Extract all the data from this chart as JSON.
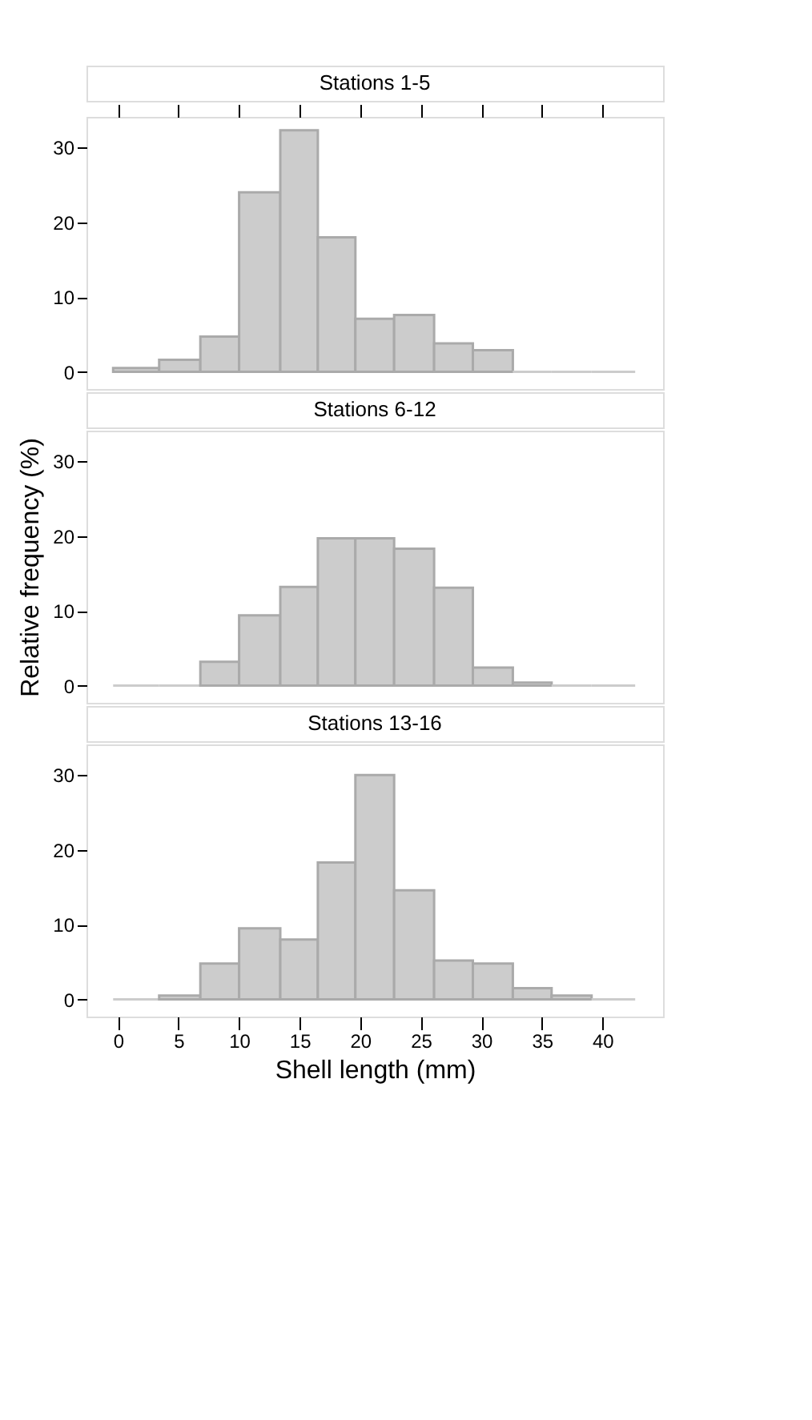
{
  "chart_data": [
    {
      "type": "histogram",
      "title": "Stations 1-5",
      "bins": [
        -0.4,
        3.4,
        6.8,
        10,
        13.4,
        16.5,
        19.6,
        22.8,
        26.1,
        29.3,
        32.6,
        35.8,
        39.1,
        42.7
      ],
      "values": [
        0.5,
        1.6,
        4.7,
        24.0,
        32.3,
        18.0,
        7.1,
        7.6,
        3.8,
        2.9,
        0,
        0,
        0
      ],
      "color": "#cccccc",
      "xlim": [
        -2.6,
        45.0
      ],
      "xticks": [
        {
          "value": 0,
          "label": null
        },
        {
          "value": 5,
          "label": null
        },
        {
          "value": 10,
          "label": null
        },
        {
          "value": 15,
          "label": null
        },
        {
          "value": 20,
          "label": null
        },
        {
          "value": 25,
          "label": null
        },
        {
          "value": 30,
          "label": null
        },
        {
          "value": 35,
          "label": null
        },
        {
          "value": 40,
          "label": null
        }
      ],
      "ylim": [
        -2.3,
        34.1
      ],
      "yticks": [
        0,
        10,
        20,
        30
      ],
      "tick_labels": "y",
      "grid": false
    },
    {
      "type": "histogram",
      "title": "Stations 6-12",
      "ylabel": "Relative frequency (%)",
      "bins": [
        -0.4,
        3.4,
        6.8,
        10,
        13.4,
        16.5,
        19.6,
        22.8,
        26.1,
        29.3,
        32.6,
        35.8,
        39.1,
        42.7
      ],
      "values": [
        0,
        0,
        3.2,
        9.4,
        13.2,
        19.7,
        19.7,
        18.3,
        13.1,
        2.4,
        0.4,
        0,
        0
      ],
      "color": "#cccccc",
      "xlim": [
        -2.6,
        45.0
      ],
      "ylim": [
        -2.3,
        34.1
      ],
      "yticks": [
        0,
        10,
        20,
        30
      ],
      "tick_labels": "y",
      "grid": false
    },
    {
      "type": "histogram",
      "title": "Stations 13-16",
      "xlabel": "Shell length (mm)",
      "bins": [
        -0.4,
        3.4,
        6.8,
        10,
        13.4,
        16.5,
        19.6,
        22.8,
        26.1,
        29.3,
        32.6,
        35.8,
        39.1,
        42.7
      ],
      "values": [
        0,
        0.5,
        4.8,
        9.5,
        8.0,
        18.3,
        30.0,
        14.6,
        5.2,
        4.8,
        1.5,
        0.5,
        0
      ],
      "color": "#cccccc",
      "xlim": [
        -2.6,
        45.0
      ],
      "xticks": [
        0,
        5,
        10,
        15,
        20,
        25,
        30,
        35,
        40
      ],
      "ylim": [
        -2.3,
        34.1
      ],
      "yticks": [
        0,
        10,
        20,
        30
      ],
      "grid": false
    }
  ]
}
